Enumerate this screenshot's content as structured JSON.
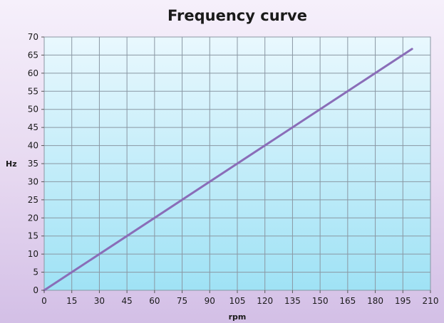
{
  "chart_data": {
    "type": "line",
    "title": "Frequency curve",
    "xlabel": "rpm",
    "ylabel": "Hz",
    "xlim": [
      0,
      210
    ],
    "ylim": [
      0,
      70
    ],
    "x_ticks": [
      0,
      15,
      30,
      45,
      60,
      75,
      90,
      105,
      120,
      135,
      150,
      165,
      180,
      195,
      210
    ],
    "y_ticks": [
      0,
      5,
      10,
      15,
      20,
      25,
      30,
      35,
      40,
      45,
      50,
      55,
      60,
      65,
      70
    ],
    "grid": true,
    "legend": "none",
    "colors": {
      "line": "#8a6db8",
      "grid": "#8a97a3",
      "plot_top": "#e9f8fe",
      "plot_bottom": "#9fe2f5"
    },
    "series": [
      {
        "x": [
          0,
          200
        ],
        "y": [
          0,
          66.7
        ]
      }
    ]
  }
}
